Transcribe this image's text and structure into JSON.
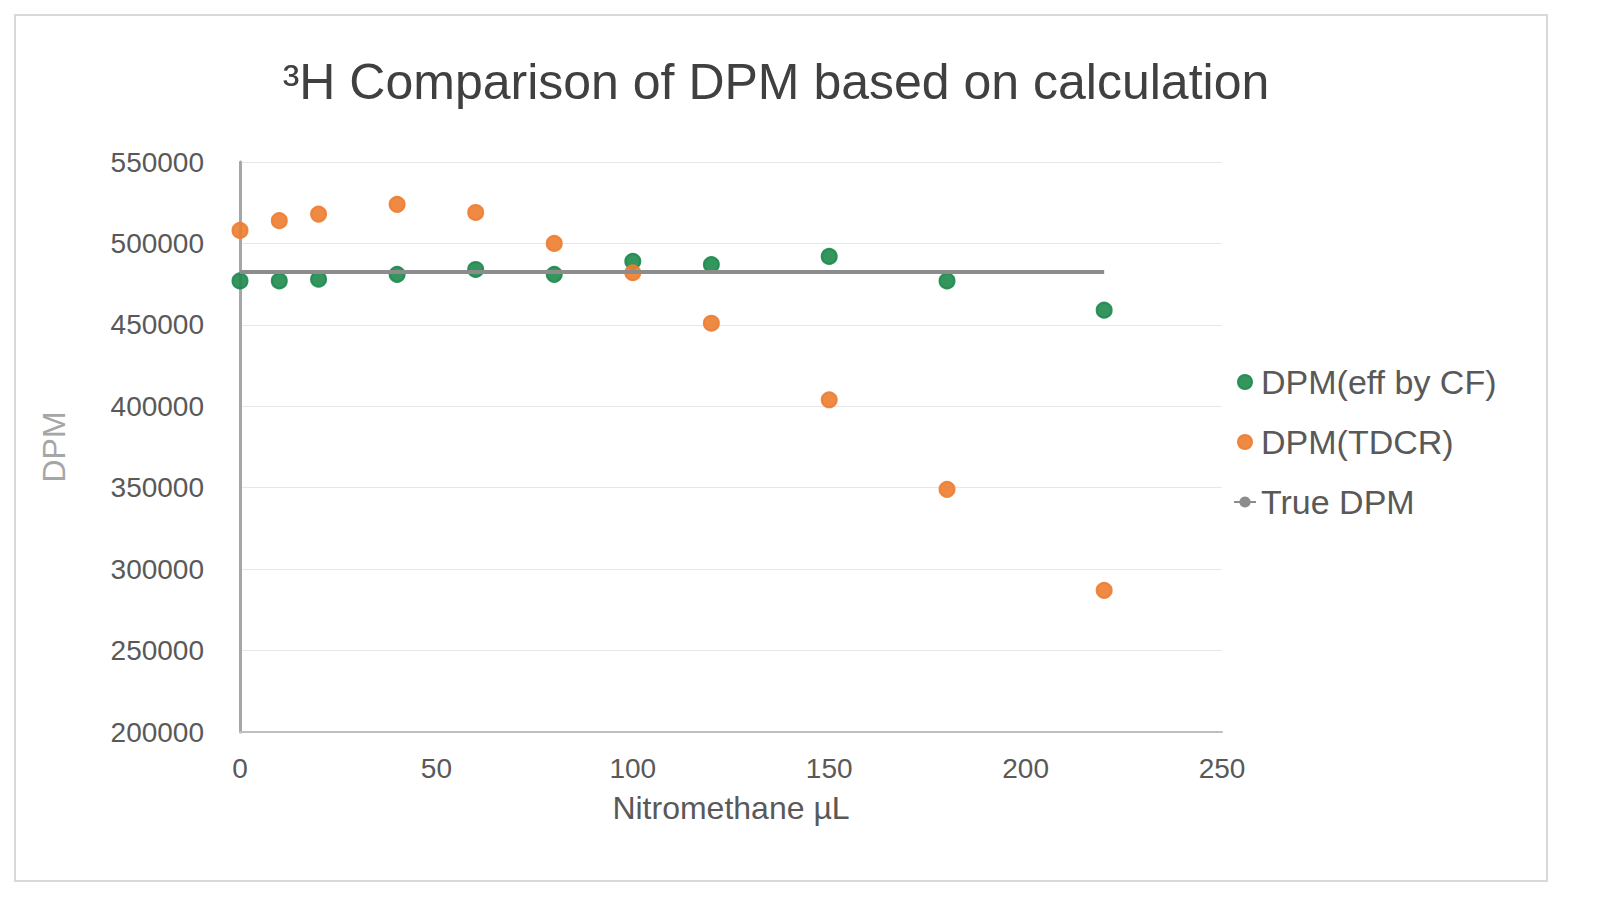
{
  "chart_data": {
    "type": "scatter",
    "title": "³H Comparison of DPM based on calculation",
    "x_label": "Nitromethane µL",
    "y_label": "DPM",
    "xlim": [
      0,
      250
    ],
    "xticks": [
      0,
      50,
      100,
      150,
      200,
      250
    ],
    "ylim": [
      200000,
      550000
    ],
    "yticks": [
      200000,
      250000,
      300000,
      350000,
      400000,
      450000,
      500000,
      550000
    ],
    "grid": true,
    "legend": "right",
    "series": [
      {
        "name": "DPM(eff by CF)",
        "color": "#1e8a4e",
        "marker": "circle",
        "x": [
          0,
          10,
          20,
          40,
          60,
          80,
          100,
          120,
          150,
          180,
          220
        ],
        "values": [
          477000,
          477000,
          478000,
          481000,
          484000,
          481000,
          489000,
          487000,
          492000,
          477000,
          459000
        ]
      },
      {
        "name": "DPM(TDCR)",
        "color": "#ed7d31",
        "marker": "circle",
        "x": [
          0,
          10,
          20,
          40,
          60,
          80,
          100,
          120,
          150,
          180,
          220
        ],
        "values": [
          508000,
          514000,
          518000,
          524000,
          519000,
          500000,
          482000,
          451000,
          404000,
          349000,
          287000
        ]
      },
      {
        "name": "True DPM",
        "color": "#8c8c8c",
        "type": "line",
        "line_style": "solid",
        "x": [
          0,
          220
        ],
        "values": [
          482500,
          482500
        ]
      }
    ]
  }
}
